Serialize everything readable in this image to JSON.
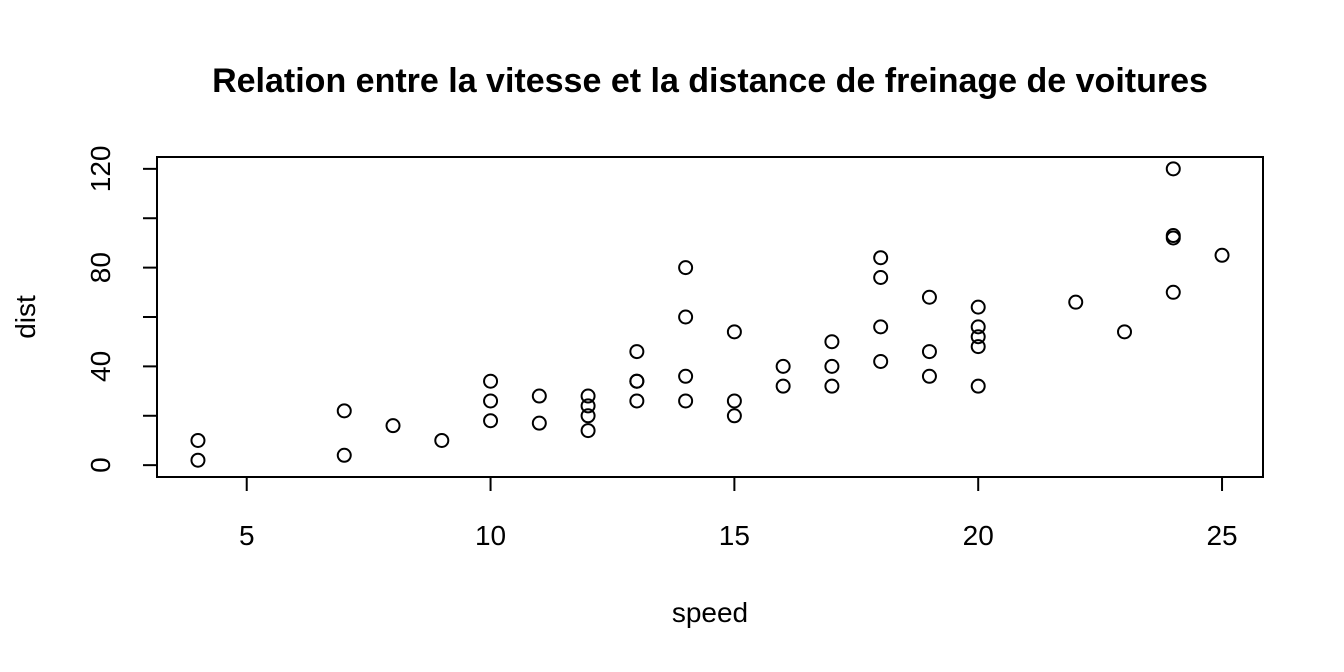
{
  "chart_data": {
    "type": "scatter",
    "title": "Relation entre la vitesse et la distance de freinage de voitures",
    "xlabel": "speed",
    "ylabel": "dist",
    "xlim": [
      3.16,
      25.84
    ],
    "ylim": [
      -4.8,
      124.8
    ],
    "xticks": [
      5,
      10,
      15,
      20,
      25
    ],
    "yticks": [
      0,
      40,
      80,
      120
    ],
    "yticks_minor": [
      20,
      60,
      100
    ],
    "grid": false,
    "legend": "none",
    "series": [
      {
        "points": [
          [
            4,
            2
          ],
          [
            4,
            10
          ],
          [
            7,
            4
          ],
          [
            7,
            22
          ],
          [
            8,
            16
          ],
          [
            9,
            10
          ],
          [
            10,
            18
          ],
          [
            10,
            26
          ],
          [
            10,
            34
          ],
          [
            11,
            17
          ],
          [
            11,
            28
          ],
          [
            12,
            14
          ],
          [
            12,
            20
          ],
          [
            12,
            24
          ],
          [
            12,
            28
          ],
          [
            13,
            26
          ],
          [
            13,
            34
          ],
          [
            13,
            34
          ],
          [
            13,
            46
          ],
          [
            14,
            26
          ],
          [
            14,
            36
          ],
          [
            14,
            60
          ],
          [
            14,
            80
          ],
          [
            15,
            20
          ],
          [
            15,
            26
          ],
          [
            15,
            54
          ],
          [
            16,
            32
          ],
          [
            16,
            40
          ],
          [
            17,
            32
          ],
          [
            17,
            40
          ],
          [
            17,
            50
          ],
          [
            18,
            42
          ],
          [
            18,
            56
          ],
          [
            18,
            76
          ],
          [
            18,
            84
          ],
          [
            19,
            36
          ],
          [
            19,
            46
          ],
          [
            19,
            68
          ],
          [
            20,
            32
          ],
          [
            20,
            48
          ],
          [
            20,
            52
          ],
          [
            20,
            56
          ],
          [
            20,
            64
          ],
          [
            22,
            66
          ],
          [
            23,
            54
          ],
          [
            24,
            70
          ],
          [
            24,
            92
          ],
          [
            24,
            93
          ],
          [
            24,
            120
          ],
          [
            25,
            85
          ]
        ]
      }
    ]
  }
}
